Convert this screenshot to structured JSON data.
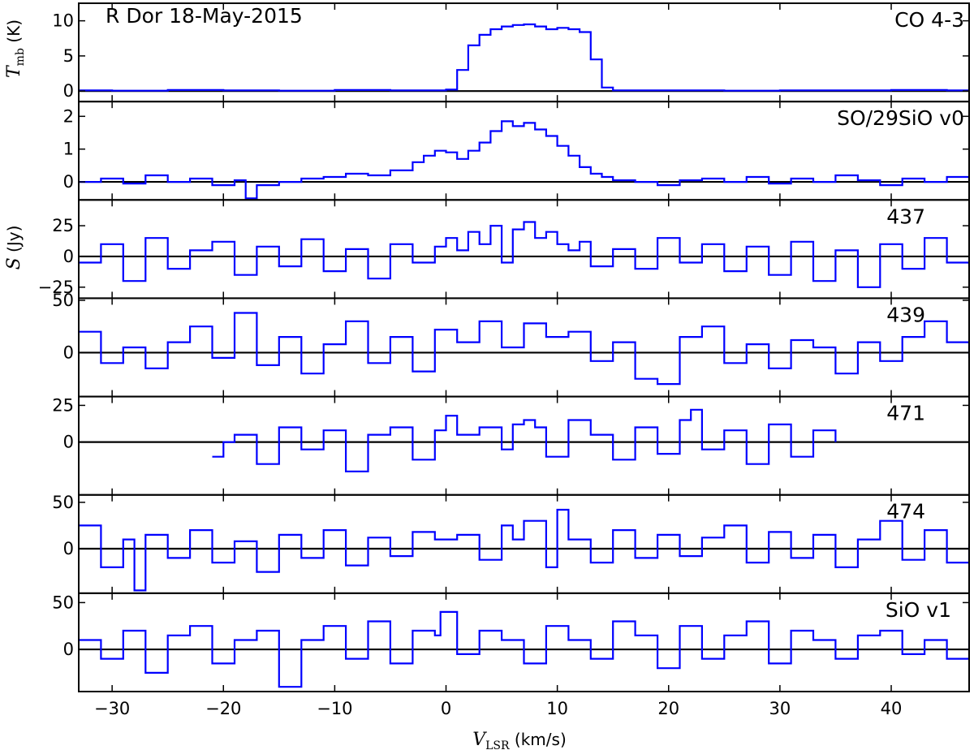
{
  "chart_data": {
    "type": "line",
    "style": "step",
    "title": "R Dor  18-May-2015",
    "xlabel": {
      "symbol": "V",
      "subscript": "LSR",
      "unit": "  (km/s)"
    },
    "ylabel_top": {
      "symbol": "T",
      "subscript": "mb",
      "unit": " (K)"
    },
    "ylabel_shared": {
      "symbol": "S",
      "unit": " (Jy)"
    },
    "xlim": [
      -33,
      47
    ],
    "xticks": [
      -30,
      -20,
      -10,
      0,
      10,
      20,
      30,
      40
    ],
    "xtick_labels": [
      "−30",
      "−20",
      "−10",
      "0",
      "10",
      "20",
      "30",
      "40"
    ],
    "line_color": "#0000ff",
    "zero_line_color": "#000000",
    "panels": [
      {
        "label": "CO 4-3",
        "ylim": [
          -1.5,
          12.5
        ],
        "yticks": [
          0,
          5,
          10
        ],
        "ytick_labels": [
          "0",
          "5",
          "10"
        ],
        "x": [
          -33,
          -30,
          -25,
          -20,
          -15,
          -10,
          -5,
          -2,
          -1,
          0,
          1,
          2,
          3,
          4,
          5,
          6,
          7,
          8,
          9,
          10,
          11,
          12,
          13,
          14,
          15,
          20,
          25,
          30,
          35,
          40,
          45,
          47
        ],
        "y": [
          0.1,
          0.05,
          0.15,
          0.1,
          0.05,
          0.15,
          0.1,
          0.1,
          0.1,
          0.2,
          3.0,
          6.5,
          8.0,
          8.8,
          9.2,
          9.4,
          9.5,
          9.2,
          8.8,
          9.0,
          8.8,
          8.4,
          4.5,
          0.5,
          0.1,
          0.1,
          0.05,
          0.1,
          0.1,
          0.15,
          0.1,
          0.1
        ]
      },
      {
        "label": "SO/29SiO v0",
        "ylim": [
          -0.55,
          2.45
        ],
        "yticks": [
          0,
          1,
          2
        ],
        "ytick_labels": [
          "0",
          "1",
          "2"
        ],
        "x": [
          -33,
          -31,
          -29,
          -27,
          -25,
          -23,
          -21,
          -19,
          -18,
          -17,
          -15,
          -13,
          -11,
          -9,
          -7,
          -5,
          -3,
          -2,
          -1,
          0,
          1,
          2,
          3,
          4,
          5,
          6,
          7,
          8,
          9,
          10,
          11,
          12,
          13,
          14,
          15,
          17,
          19,
          21,
          23,
          25,
          27,
          29,
          31,
          33,
          35,
          37,
          39,
          41,
          43,
          45,
          47
        ],
        "y": [
          0.0,
          0.1,
          -0.05,
          0.2,
          0.0,
          0.1,
          -0.1,
          0.05,
          -0.5,
          -0.1,
          0.0,
          0.1,
          0.15,
          0.25,
          0.2,
          0.35,
          0.6,
          0.8,
          0.95,
          0.9,
          0.7,
          0.95,
          1.2,
          1.55,
          1.85,
          1.7,
          1.8,
          1.6,
          1.4,
          1.1,
          0.8,
          0.45,
          0.25,
          0.15,
          0.05,
          0.0,
          -0.1,
          0.05,
          0.1,
          0.0,
          0.15,
          -0.05,
          0.1,
          0.0,
          0.2,
          0.05,
          -0.1,
          0.1,
          0.0,
          0.15,
          0.0
        ]
      },
      {
        "label": "437",
        "ylim": [
          -34,
          46
        ],
        "yticks": [
          25,
          0,
          -25
        ],
        "ytick_labels": [
          "25",
          "0",
          "−25"
        ],
        "x": [
          -33,
          -31,
          -29,
          -27,
          -25,
          -23,
          -21,
          -19,
          -17,
          -15,
          -13,
          -11,
          -9,
          -7,
          -5,
          -3,
          -1,
          0,
          1,
          2,
          3,
          4,
          5,
          6,
          7,
          8,
          9,
          10,
          11,
          12,
          13,
          15,
          17,
          19,
          21,
          23,
          25,
          27,
          29,
          31,
          33,
          35,
          37,
          39,
          41,
          43,
          45,
          47
        ],
        "y": [
          -5,
          10,
          -20,
          15,
          -10,
          5,
          12,
          -15,
          8,
          -8,
          14,
          -12,
          6,
          -18,
          10,
          -5,
          8,
          15,
          5,
          20,
          10,
          25,
          -5,
          22,
          28,
          15,
          20,
          10,
          5,
          12,
          -8,
          6,
          -10,
          15,
          -5,
          10,
          -12,
          8,
          -15,
          12,
          -20,
          5,
          -25,
          10,
          -10,
          15,
          -5,
          -8
        ]
      },
      {
        "label": "439",
        "ylim": [
          -42,
          52
        ],
        "yticks": [
          0,
          50
        ],
        "ytick_labels": [
          "0",
          "50"
        ],
        "x": [
          -33,
          -31,
          -29,
          -27,
          -25,
          -23,
          -21,
          -19,
          -17,
          -15,
          -13,
          -11,
          -9,
          -7,
          -5,
          -3,
          -1,
          1,
          3,
          5,
          7,
          9,
          11,
          13,
          15,
          17,
          19,
          21,
          23,
          25,
          27,
          29,
          31,
          33,
          35,
          37,
          39,
          41,
          43,
          45,
          47
        ],
        "y": [
          20,
          -10,
          5,
          -15,
          10,
          25,
          -5,
          38,
          -12,
          15,
          -20,
          8,
          30,
          -10,
          15,
          -18,
          22,
          10,
          30,
          5,
          28,
          15,
          20,
          -8,
          10,
          -25,
          -30,
          15,
          25,
          -10,
          8,
          -15,
          12,
          5,
          -20,
          10,
          -8,
          15,
          30,
          10,
          -5
        ]
      },
      {
        "label": "471",
        "ylim": [
          -36,
          31
        ],
        "yticks": [
          25,
          0
        ],
        "ytick_labels": [
          "25",
          "0"
        ],
        "x": [
          -21,
          -20,
          -19,
          -17,
          -15,
          -13,
          -11,
          -9,
          -7,
          -5,
          -3,
          -1,
          0,
          1,
          3,
          5,
          6,
          7,
          8,
          9,
          11,
          13,
          15,
          17,
          19,
          21,
          22,
          23,
          25,
          27,
          29,
          31,
          33,
          35
        ],
        "y": [
          -10,
          0,
          5,
          -15,
          10,
          -5,
          8,
          -20,
          5,
          10,
          -12,
          8,
          18,
          5,
          10,
          -5,
          12,
          15,
          10,
          -10,
          15,
          5,
          -12,
          10,
          -8,
          15,
          22,
          -5,
          8,
          -15,
          12,
          -10,
          8,
          0
        ]
      },
      {
        "label": "474",
        "ylim": [
          -48,
          58
        ],
        "yticks": [
          0,
          50
        ],
        "ytick_labels": [
          "0",
          "50"
        ],
        "x": [
          -33,
          -31,
          -29,
          -28,
          -27,
          -25,
          -23,
          -21,
          -19,
          -17,
          -15,
          -13,
          -11,
          -9,
          -7,
          -5,
          -3,
          -1,
          1,
          3,
          5,
          6,
          7,
          9,
          10,
          11,
          13,
          15,
          17,
          19,
          21,
          23,
          25,
          27,
          29,
          31,
          33,
          35,
          37,
          39,
          41,
          43,
          45,
          47
        ],
        "y": [
          25,
          -20,
          10,
          -45,
          15,
          -10,
          20,
          -15,
          8,
          -25,
          15,
          -10,
          20,
          -18,
          12,
          -8,
          18,
          10,
          15,
          -12,
          25,
          10,
          30,
          -20,
          42,
          10,
          -15,
          20,
          -10,
          15,
          -8,
          12,
          25,
          -15,
          18,
          -10,
          15,
          -20,
          10,
          30,
          -12,
          20,
          -15,
          5
        ]
      },
      {
        "label": "SiO v1",
        "ylim": [
          -45,
          60
        ],
        "yticks": [
          0,
          50
        ],
        "ytick_labels": [
          "0",
          "50"
        ],
        "x": [
          -33,
          -31,
          -29,
          -27,
          -25,
          -23,
          -21,
          -19,
          -17,
          -15,
          -13,
          -11,
          -9,
          -7,
          -5,
          -3,
          -1,
          -0.5,
          1,
          3,
          5,
          7,
          9,
          11,
          13,
          15,
          17,
          19,
          21,
          23,
          25,
          27,
          29,
          31,
          33,
          35,
          37,
          39,
          41,
          43,
          45,
          47
        ],
        "y": [
          10,
          -10,
          20,
          -25,
          15,
          25,
          -15,
          10,
          20,
          -40,
          10,
          25,
          -10,
          30,
          -15,
          20,
          15,
          40,
          -5,
          20,
          10,
          -15,
          25,
          10,
          -10,
          30,
          15,
          -20,
          25,
          -10,
          15,
          30,
          -15,
          20,
          10,
          -10,
          15,
          20,
          -5,
          10,
          -10,
          10
        ]
      }
    ]
  }
}
